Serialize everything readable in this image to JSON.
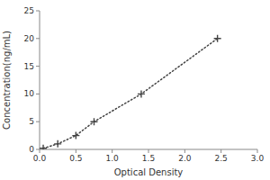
{
  "chart_data": {
    "type": "line",
    "x": [
      0.05,
      0.25,
      0.5,
      0.75,
      1.4,
      2.45
    ],
    "values": [
      0.2,
      1.0,
      2.5,
      5.0,
      10.0,
      20.0
    ],
    "xlabel": "Optical Density",
    "ylabel": "Concentration(ng/mL)",
    "xlim": [
      0,
      3
    ],
    "ylim": [
      0,
      25
    ],
    "xticks": [
      {
        "value": 0,
        "label": "0.0"
      },
      0.5,
      {
        "value": 1,
        "label": "1.0"
      },
      1.5,
      {
        "value": 2,
        "label": "2.0"
      },
      2.5,
      {
        "value": 3,
        "label": "3.0"
      }
    ],
    "yticks": [
      0,
      5,
      10,
      15,
      20,
      25
    ],
    "color": "#444444",
    "line_style": "dotted",
    "marker": "+"
  }
}
